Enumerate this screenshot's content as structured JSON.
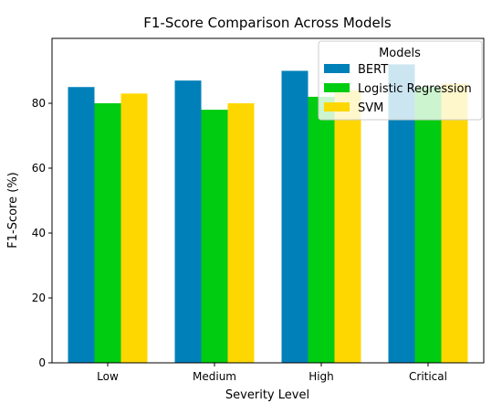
{
  "chart_data": {
    "type": "bar",
    "title": "F1-Score Comparison Across Models",
    "xlabel": "Severity Level",
    "ylabel": "F1-Score (%)",
    "categories": [
      "Low",
      "Medium",
      "High",
      "Critical"
    ],
    "series": [
      {
        "name": "BERT",
        "values": [
          85,
          87,
          90,
          92
        ],
        "color": "#0080b8"
      },
      {
        "name": "Logistic Regression",
        "values": [
          80,
          78,
          82,
          85
        ],
        "color": "#00cc11"
      },
      {
        "name": "SVM",
        "values": [
          83,
          80,
          84,
          86
        ],
        "color": "#ffd700"
      }
    ],
    "ylim": [
      0,
      100
    ],
    "yticks": [
      0,
      20,
      40,
      60,
      80
    ],
    "grid": false,
    "legend": {
      "title": "Models",
      "placement": "top-right"
    }
  }
}
